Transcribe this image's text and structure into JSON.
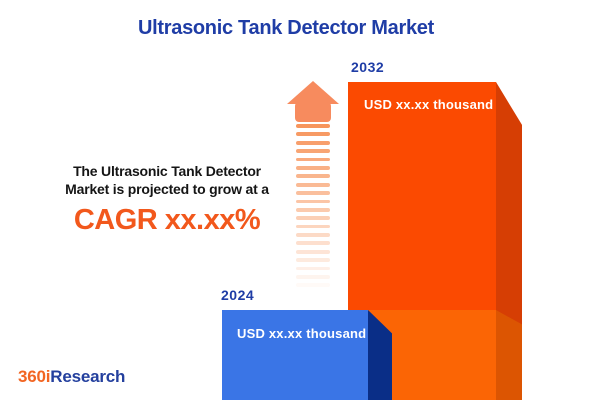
{
  "title": "Ultrasonic Tank Detector Market",
  "annotation": {
    "line1": "The Ultrasonic Tank Detector",
    "line2": "Market is projected to grow at a",
    "cagr": "CAGR xx.xx%"
  },
  "bars": [
    {
      "year": "2024",
      "value": "USD xx.xx thousand",
      "face_color": "#3a75e6",
      "side_color": "#0a2e87"
    },
    {
      "year": "2032",
      "value": "USD xx.xx thousand",
      "face_color": "#fb4a01",
      "side_color": "#d63e04",
      "base_segment_face_color": "#fb6505",
      "base_segment_side_color": "#dc5502"
    }
  ],
  "chart_data": {
    "type": "bar",
    "title": "Ultrasonic Tank Detector Market",
    "categories": [
      "2024",
      "2032"
    ],
    "values": [
      "USD xx.xx thousand",
      "USD xx.xx thousand"
    ],
    "annotation": "The Ultrasonic Tank Detector Market is projected to grow at a CAGR xx.xx%",
    "unit": "USD thousand",
    "grid": false,
    "axes_hidden": true,
    "legend_position": "none",
    "colors": {
      "2024": "#3a75e6",
      "2032": "#fb4a01"
    }
  },
  "icons": {
    "growth_arrow": "upward-arrow",
    "arrow_color": "#f78b5e",
    "trail_color": "#f7955c"
  },
  "colors": {
    "title_blue": "#1f3da6",
    "cagr_orange": "#f2581c",
    "text_dark": "#151515",
    "background": "#ffffff"
  },
  "logo": {
    "prefix": "360i",
    "suffix": "Research"
  }
}
